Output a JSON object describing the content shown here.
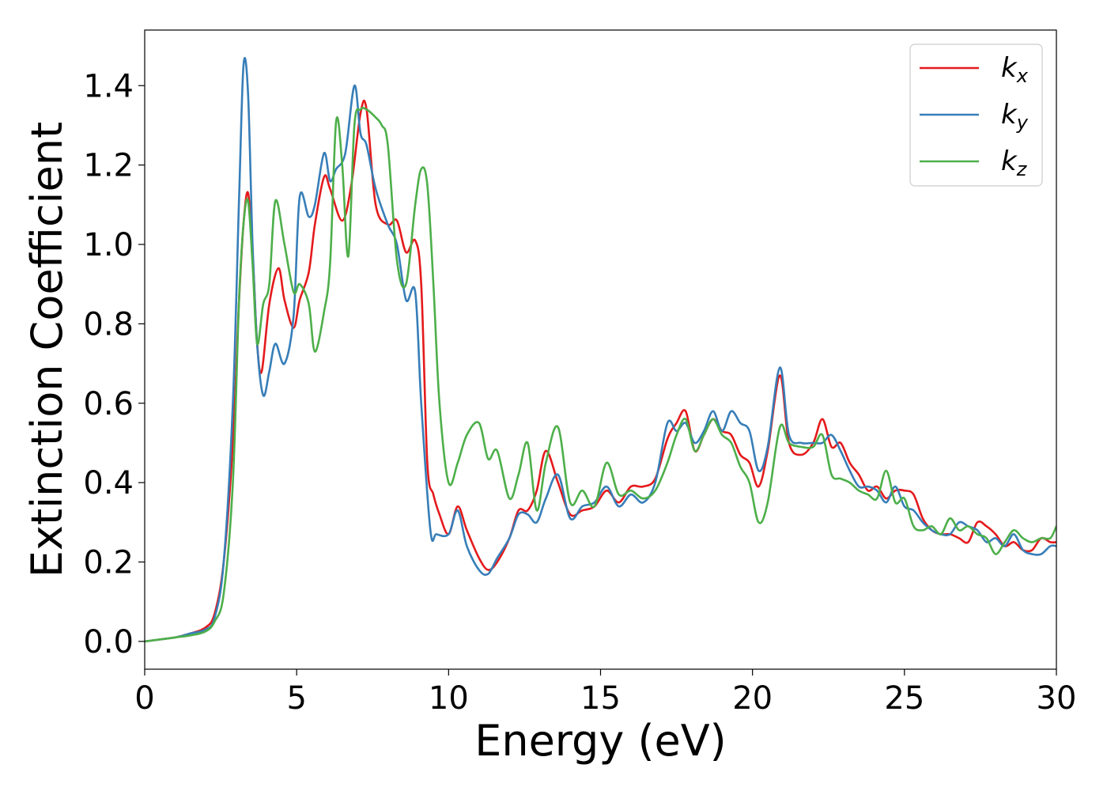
{
  "chart_data": {
    "type": "line",
    "title": "",
    "xlabel": "Energy (eV)",
    "ylabel": "Extinction Coefficient",
    "xlim": [
      0,
      30
    ],
    "ylim": [
      -0.07,
      1.54
    ],
    "xticks": [
      0,
      5,
      10,
      15,
      20,
      25,
      30
    ],
    "xtick_labels": [
      "0",
      "5",
      "10",
      "15",
      "20",
      "25",
      "30"
    ],
    "yticks": [
      0.0,
      0.2,
      0.4,
      0.6,
      0.8,
      1.0,
      1.2,
      1.4
    ],
    "ytick_labels": [
      "0.0",
      "0.2",
      "0.4",
      "0.6",
      "0.8",
      "1.0",
      "1.2",
      "1.4"
    ],
    "grid": false,
    "legend_position": "top-right",
    "series": [
      {
        "name": "k_x",
        "label_base": "k",
        "label_sub": "x",
        "color": "#e41a1c",
        "x": [
          0,
          1,
          1.5,
          2,
          2.3,
          2.6,
          2.9,
          3.1,
          3.25,
          3.4,
          3.55,
          3.7,
          3.85,
          4.1,
          4.4,
          4.6,
          4.9,
          5.1,
          5.4,
          5.6,
          5.9,
          6.1,
          6.5,
          6.8,
          7.1,
          7.3,
          7.6,
          8.0,
          8.3,
          8.6,
          8.9,
          9.1,
          9.3,
          9.5,
          9.7,
          10.0,
          10.3,
          10.6,
          11.0,
          11.3,
          11.6,
          12.0,
          12.3,
          12.6,
          12.9,
          13.2,
          13.6,
          14.0,
          14.4,
          14.8,
          15.2,
          15.6,
          16.0,
          16.4,
          16.8,
          17.2,
          17.5,
          17.8,
          18.1,
          18.4,
          18.7,
          19.0,
          19.3,
          19.6,
          19.9,
          20.2,
          20.5,
          20.9,
          21.2,
          21.6,
          22.0,
          22.3,
          22.6,
          22.9,
          23.2,
          23.5,
          23.8,
          24.1,
          24.4,
          24.7,
          25.0,
          25.3,
          25.6,
          25.9,
          26.2,
          26.5,
          26.8,
          27.1,
          27.4,
          27.7,
          28.0,
          28.3,
          28.6,
          28.9,
          29.2,
          29.5,
          29.8,
          30.0
        ],
        "y": [
          0,
          0.01,
          0.02,
          0.035,
          0.07,
          0.2,
          0.5,
          0.85,
          1.05,
          1.13,
          0.98,
          0.75,
          0.68,
          0.85,
          0.94,
          0.86,
          0.79,
          0.86,
          0.93,
          1.05,
          1.17,
          1.14,
          1.06,
          1.15,
          1.33,
          1.34,
          1.1,
          1.05,
          1.06,
          0.98,
          1.01,
          0.9,
          0.45,
          0.37,
          0.32,
          0.27,
          0.34,
          0.28,
          0.21,
          0.18,
          0.2,
          0.26,
          0.33,
          0.33,
          0.38,
          0.48,
          0.4,
          0.32,
          0.33,
          0.34,
          0.38,
          0.35,
          0.39,
          0.39,
          0.41,
          0.51,
          0.55,
          0.58,
          0.48,
          0.52,
          0.56,
          0.53,
          0.52,
          0.47,
          0.45,
          0.39,
          0.48,
          0.67,
          0.5,
          0.47,
          0.5,
          0.56,
          0.49,
          0.5,
          0.45,
          0.42,
          0.38,
          0.39,
          0.36,
          0.38,
          0.38,
          0.37,
          0.31,
          0.28,
          0.27,
          0.27,
          0.26,
          0.25,
          0.3,
          0.29,
          0.27,
          0.24,
          0.25,
          0.23,
          0.23,
          0.26,
          0.25,
          0.25
        ]
      },
      {
        "name": "k_y",
        "label_base": "k",
        "label_sub": "y",
        "color": "#377eb8",
        "x": [
          0,
          1,
          1.5,
          2,
          2.3,
          2.6,
          2.9,
          3.1,
          3.25,
          3.4,
          3.55,
          3.7,
          3.9,
          4.1,
          4.3,
          4.6,
          4.9,
          5.1,
          5.4,
          5.6,
          5.9,
          6.1,
          6.3,
          6.6,
          6.9,
          7.1,
          7.3,
          7.6,
          8.0,
          8.3,
          8.6,
          8.9,
          9.1,
          9.4,
          9.6,
          10.0,
          10.3,
          10.6,
          11.0,
          11.3,
          11.6,
          12.0,
          12.3,
          12.6,
          12.9,
          13.2,
          13.6,
          14.0,
          14.4,
          14.8,
          15.2,
          15.6,
          16.0,
          16.4,
          16.8,
          17.2,
          17.5,
          17.8,
          18.1,
          18.4,
          18.7,
          19.0,
          19.3,
          19.6,
          19.9,
          20.2,
          20.5,
          20.9,
          21.2,
          21.6,
          22.0,
          22.3,
          22.6,
          22.9,
          23.2,
          23.5,
          23.8,
          24.1,
          24.4,
          24.7,
          25.0,
          25.3,
          25.6,
          25.9,
          26.2,
          26.5,
          26.8,
          27.1,
          27.4,
          27.7,
          28.0,
          28.3,
          28.6,
          28.9,
          29.2,
          29.5,
          29.8,
          30.0
        ],
        "y": [
          0,
          0.01,
          0.02,
          0.03,
          0.06,
          0.2,
          0.6,
          1.1,
          1.45,
          1.38,
          1.0,
          0.75,
          0.62,
          0.68,
          0.75,
          0.7,
          0.82,
          1.12,
          1.07,
          1.1,
          1.23,
          1.16,
          1.19,
          1.23,
          1.4,
          1.28,
          1.25,
          1.14,
          1.05,
          1.0,
          0.86,
          0.88,
          0.6,
          0.28,
          0.27,
          0.27,
          0.33,
          0.24,
          0.18,
          0.17,
          0.21,
          0.26,
          0.32,
          0.32,
          0.3,
          0.36,
          0.42,
          0.31,
          0.34,
          0.35,
          0.39,
          0.34,
          0.37,
          0.35,
          0.4,
          0.55,
          0.53,
          0.55,
          0.5,
          0.53,
          0.58,
          0.53,
          0.58,
          0.55,
          0.53,
          0.43,
          0.49,
          0.69,
          0.52,
          0.5,
          0.5,
          0.5,
          0.52,
          0.48,
          0.43,
          0.39,
          0.39,
          0.38,
          0.35,
          0.39,
          0.34,
          0.33,
          0.3,
          0.28,
          0.27,
          0.27,
          0.3,
          0.29,
          0.28,
          0.25,
          0.26,
          0.24,
          0.27,
          0.23,
          0.22,
          0.22,
          0.24,
          0.24
        ]
      },
      {
        "name": "k_z",
        "label_base": "k",
        "label_sub": "z",
        "color": "#4daf4a",
        "x": [
          0,
          1,
          1.5,
          2,
          2.3,
          2.6,
          2.9,
          3.1,
          3.25,
          3.4,
          3.55,
          3.7,
          3.9,
          4.1,
          4.3,
          4.6,
          4.9,
          5.1,
          5.4,
          5.6,
          5.9,
          6.1,
          6.3,
          6.5,
          6.7,
          6.9,
          7.1,
          7.3,
          7.6,
          7.8,
          8.0,
          8.3,
          8.6,
          8.9,
          9.1,
          9.3,
          9.5,
          9.7,
          10.0,
          10.3,
          10.6,
          11.0,
          11.3,
          11.6,
          12.0,
          12.3,
          12.6,
          12.9,
          13.2,
          13.6,
          14.0,
          14.4,
          14.8,
          15.2,
          15.6,
          16.0,
          16.4,
          16.8,
          17.2,
          17.5,
          17.8,
          18.1,
          18.4,
          18.7,
          19.0,
          19.3,
          19.6,
          19.9,
          20.2,
          20.5,
          20.9,
          21.2,
          21.6,
          22.0,
          22.3,
          22.6,
          22.9,
          23.2,
          23.5,
          23.8,
          24.1,
          24.4,
          24.7,
          25.0,
          25.3,
          25.6,
          25.9,
          26.2,
          26.5,
          26.8,
          27.1,
          27.4,
          27.7,
          28.0,
          28.3,
          28.6,
          28.9,
          29.2,
          29.5,
          29.8,
          30.0
        ],
        "y": [
          0,
          0.01,
          0.015,
          0.025,
          0.05,
          0.12,
          0.4,
          0.85,
          1.05,
          1.11,
          0.95,
          0.75,
          0.85,
          0.9,
          1.11,
          1.0,
          0.88,
          0.9,
          0.85,
          0.73,
          0.83,
          0.95,
          1.31,
          1.2,
          0.97,
          1.3,
          1.34,
          1.34,
          1.32,
          1.3,
          1.25,
          0.96,
          0.9,
          1.1,
          1.19,
          1.15,
          0.9,
          0.6,
          0.4,
          0.45,
          0.52,
          0.55,
          0.46,
          0.48,
          0.36,
          0.42,
          0.5,
          0.33,
          0.45,
          0.54,
          0.35,
          0.38,
          0.34,
          0.45,
          0.37,
          0.38,
          0.36,
          0.38,
          0.45,
          0.52,
          0.56,
          0.48,
          0.52,
          0.56,
          0.52,
          0.5,
          0.44,
          0.4,
          0.3,
          0.35,
          0.54,
          0.5,
          0.49,
          0.49,
          0.52,
          0.42,
          0.41,
          0.4,
          0.38,
          0.37,
          0.36,
          0.43,
          0.35,
          0.36,
          0.29,
          0.28,
          0.29,
          0.27,
          0.31,
          0.28,
          0.29,
          0.27,
          0.26,
          0.22,
          0.25,
          0.28,
          0.26,
          0.25,
          0.26,
          0.26,
          0.29
        ]
      }
    ]
  }
}
